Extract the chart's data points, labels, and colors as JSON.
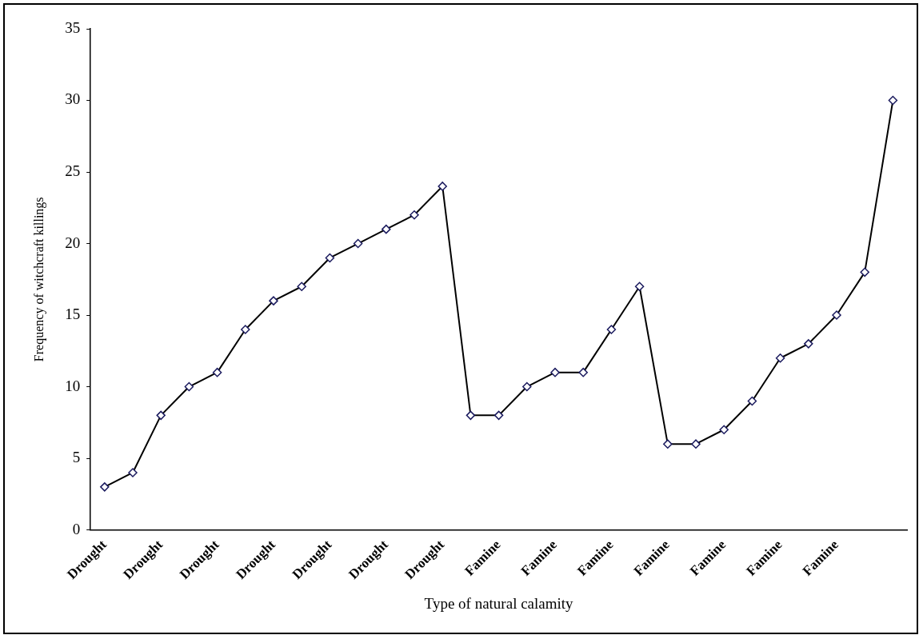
{
  "chart_data": {
    "type": "line",
    "xlabel": "Type of natural calamity",
    "ylabel": "Frequency of witchcraft killings",
    "categories": [
      "Drought",
      null,
      "Drought",
      null,
      "Drought",
      null,
      "Drought",
      null,
      "Drought",
      null,
      "Drought",
      null,
      "Drought",
      null,
      "Famine",
      null,
      "Famine",
      null,
      "Famine",
      null,
      "Famine",
      null,
      "Famine",
      null,
      "Famine",
      null,
      "Famine",
      null,
      null
    ],
    "series": [
      {
        "color": "#000000",
        "values": [
          3,
          4,
          8,
          10,
          11,
          14,
          16,
          17,
          19,
          20,
          21,
          22,
          24,
          8,
          8,
          10,
          11,
          11,
          14,
          17,
          6,
          6,
          7,
          9,
          12,
          13,
          15,
          18,
          30
        ]
      }
    ],
    "ylim": [
      0,
      35
    ],
    "yticks": [
      0,
      5,
      10,
      15,
      20,
      25,
      30,
      35
    ],
    "grid": false,
    "legend": false,
    "marker": "diamond",
    "line_style": "solid"
  }
}
